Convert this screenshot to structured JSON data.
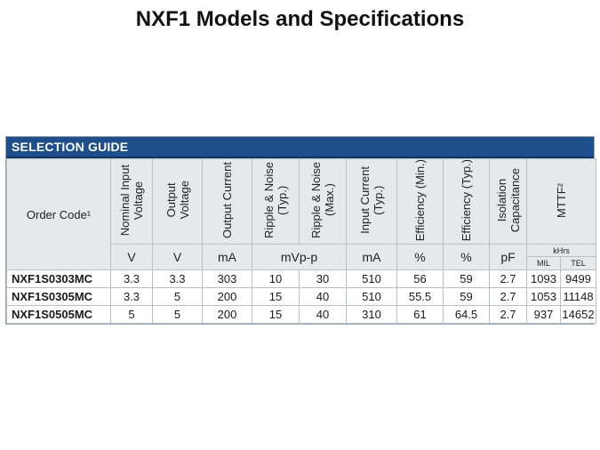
{
  "title": "NXF1 Models and Specifications",
  "guide": {
    "header": "SELECTION GUIDE",
    "order_code_label": "Order Code¹",
    "columns": [
      {
        "label": "Nominal Input\nVoltage",
        "unit": "V"
      },
      {
        "label": "Output\nVoltage",
        "unit": "V"
      },
      {
        "label": "Output Current",
        "unit": "mA"
      },
      {
        "label": "Ripple & Noise\n(Typ.)"
      },
      {
        "label": "Ripple & Noise\n(Max.)"
      },
      {
        "label": "Input Current\n(Typ.)",
        "unit": "mA"
      },
      {
        "label": "Efficiency (Min.)",
        "unit": "%"
      },
      {
        "label": "Efficiency (Typ.)",
        "unit": "%"
      },
      {
        "label": "Isolation\nCapacitance",
        "unit": "pF"
      }
    ],
    "ripple_unit": "mVp-p",
    "mttf_label": "MTTF²",
    "mttf_unit": "kHrs",
    "mttf_sub": [
      "MIL",
      "TEL"
    ],
    "rows": [
      [
        "NXF1S0303MC",
        "3.3",
        "3.3",
        "303",
        "10",
        "30",
        "510",
        "56",
        "59",
        "2.7",
        "1093",
        "9499"
      ],
      [
        "NXF1S0305MC",
        "3.3",
        "5",
        "200",
        "15",
        "40",
        "510",
        "55.5",
        "59",
        "2.7",
        "1053",
        "11148"
      ],
      [
        "NXF1S0505MC",
        "5",
        "5",
        "200",
        "15",
        "40",
        "310",
        "61",
        "64.5",
        "2.7",
        "937",
        "14652"
      ]
    ]
  }
}
